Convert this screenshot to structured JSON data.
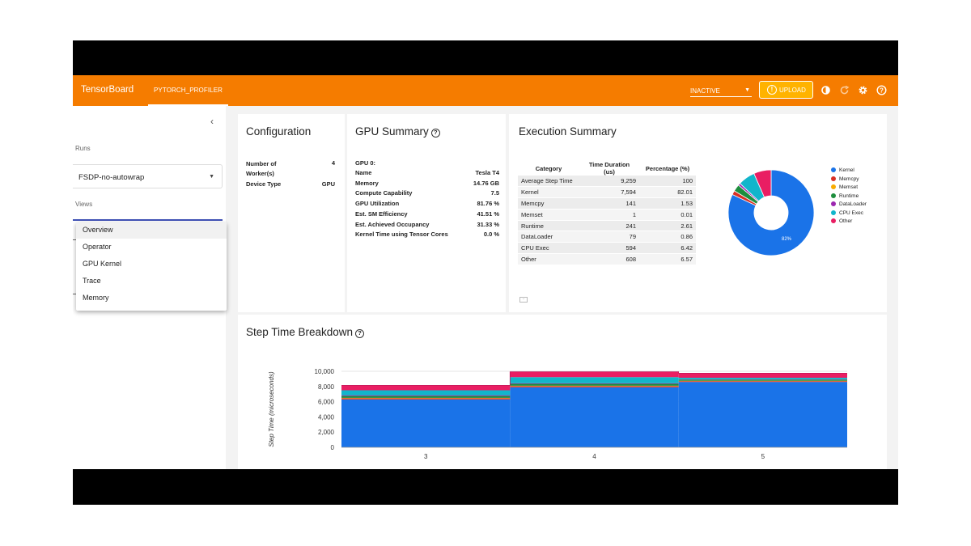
{
  "header": {
    "brand": "TensorBoard",
    "active_tab": "PYTORCH_PROFILER",
    "status_select": "INACTIVE",
    "upload_label": "UPLOAD"
  },
  "sidebar": {
    "runs_label": "Runs",
    "run_value": "FSDP-no-autowrap",
    "views_label": "Views",
    "views_options": [
      "Overview",
      "Operator",
      "GPU Kernel",
      "Trace",
      "Memory"
    ],
    "views_selected": "Overview"
  },
  "configuration": {
    "title": "Configuration",
    "rows": [
      {
        "key": "Number of",
        "key2": "Worker(s)",
        "value": "4"
      },
      {
        "key": "Device Type",
        "value": "GPU"
      }
    ]
  },
  "gpu_summary": {
    "title": "GPU Summary",
    "heading": "GPU 0:",
    "rows": [
      {
        "key": "Name",
        "value": "Tesla T4"
      },
      {
        "key": "Memory",
        "value": "14.76 GB"
      },
      {
        "key": "Compute Capability",
        "value": "7.5"
      },
      {
        "key": "GPU Utilization",
        "value": "81.76 %"
      },
      {
        "key": "Est. SM Efficiency",
        "value": "41.51 %"
      },
      {
        "key": "Est. Achieved Occupancy",
        "value": "31.33 %"
      },
      {
        "key": "Kernel Time using Tensor Cores",
        "value": "0.0 %"
      }
    ]
  },
  "execution_summary": {
    "title": "Execution Summary",
    "columns": [
      "Category",
      "Time Duration (us)",
      "Percentage (%)"
    ],
    "rows": [
      [
        "Average Step Time",
        "9,259",
        "100"
      ],
      [
        "Kernel",
        "7,594",
        "82.01"
      ],
      [
        "Memcpy",
        "141",
        "1.53"
      ],
      [
        "Memset",
        "1",
        "0.01"
      ],
      [
        "Runtime",
        "241",
        "2.61"
      ],
      [
        "DataLoader",
        "79",
        "0.86"
      ],
      [
        "CPU Exec",
        "594",
        "6.42"
      ],
      [
        "Other",
        "608",
        "6.57"
      ]
    ],
    "pie_label": "82%",
    "pie": [
      {
        "name": "Kernel",
        "value": 82.01,
        "color": "#1a73e8"
      },
      {
        "name": "Memcpy",
        "value": 1.53,
        "color": "#d93025"
      },
      {
        "name": "Memset",
        "value": 0.01,
        "color": "#f9ab00"
      },
      {
        "name": "Runtime",
        "value": 2.61,
        "color": "#1e8e3e"
      },
      {
        "name": "DataLoader",
        "value": 0.86,
        "color": "#9c27b0"
      },
      {
        "name": "CPU Exec",
        "value": 6.42,
        "color": "#12b5cb"
      },
      {
        "name": "Other",
        "value": 6.57,
        "color": "#e91e63"
      }
    ]
  },
  "step_time": {
    "title": "Step Time Breakdown",
    "ylabel": "Step Time (microseconds)",
    "ylim": [
      0,
      10000
    ],
    "yticks": [
      "0",
      "2,000",
      "4,000",
      "6,000",
      "8,000",
      "10,000"
    ],
    "ytick_values": [
      0,
      2000,
      4000,
      6000,
      8000,
      10000
    ],
    "categories": [
      "3",
      "4",
      "5"
    ],
    "series": [
      {
        "name": "Kernel",
        "color": "#1a73e8",
        "values": [
          6300,
          7900,
          8600
        ]
      },
      {
        "name": "Memcpy",
        "color": "#d93025",
        "values": [
          150,
          150,
          100
        ]
      },
      {
        "name": "Memset",
        "color": "#f9ab00",
        "values": [
          50,
          50,
          50
        ]
      },
      {
        "name": "Runtime",
        "color": "#1e8e3e",
        "values": [
          250,
          250,
          150
        ]
      },
      {
        "name": "DataLoader",
        "color": "#9c27b0",
        "values": [
          100,
          80,
          50
        ]
      },
      {
        "name": "CPU Exec",
        "color": "#12b5cb",
        "values": [
          650,
          800,
          200
        ]
      },
      {
        "name": "Other",
        "color": "#e91e63",
        "values": [
          650,
          700,
          600
        ]
      }
    ]
  }
}
